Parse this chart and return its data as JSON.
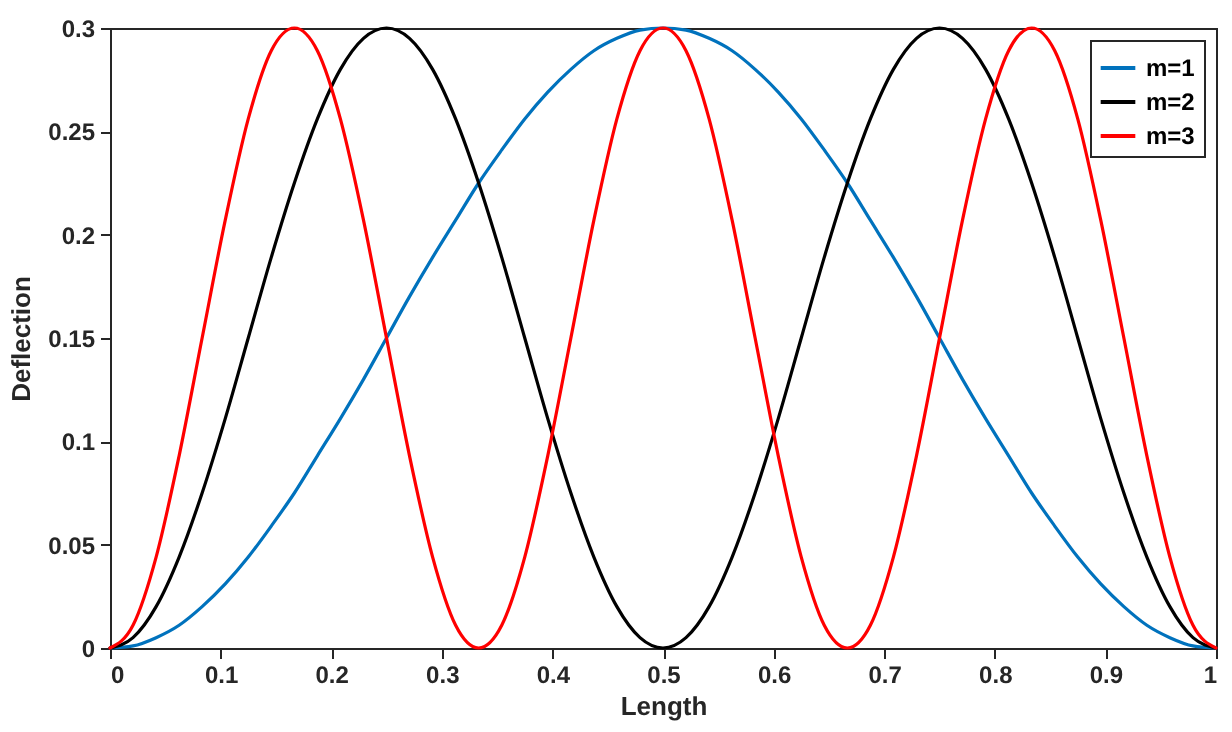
{
  "chart_data": {
    "type": "line",
    "xlabel": "Length",
    "ylabel": "Deflection",
    "x": [
      0,
      0.0208,
      0.0417,
      0.0625,
      0.0833,
      0.1042,
      0.125,
      0.1458,
      0.1667,
      0.1875,
      0.2083,
      0.2292,
      0.25,
      0.2708,
      0.2917,
      0.3125,
      0.3333,
      0.3542,
      0.375,
      0.3958,
      0.4167,
      0.4375,
      0.4583,
      0.4792,
      0.5,
      0.5208,
      0.5417,
      0.5625,
      0.5833,
      0.6042,
      0.625,
      0.6458,
      0.6667,
      0.6875,
      0.7083,
      0.7292,
      0.75,
      0.7708,
      0.7917,
      0.8125,
      0.8333,
      0.8542,
      0.875,
      0.8958,
      0.9167,
      0.9375,
      0.9583,
      0.9792,
      1
    ],
    "series": [
      {
        "name": "m=1",
        "color": "#0072bd",
        "values": [
          0,
          0.001,
          0.005,
          0.011,
          0.02,
          0.031,
          0.044,
          0.059,
          0.075,
          0.093,
          0.111,
          0.13,
          0.15,
          0.17,
          0.189,
          0.207,
          0.225,
          0.241,
          0.256,
          0.269,
          0.28,
          0.289,
          0.295,
          0.299,
          0.3,
          0.299,
          0.295,
          0.289,
          0.28,
          0.269,
          0.256,
          0.241,
          0.225,
          0.207,
          0.189,
          0.17,
          0.15,
          0.13,
          0.111,
          0.093,
          0.075,
          0.059,
          0.044,
          0.031,
          0.02,
          0.011,
          0.005,
          0.001,
          0
        ]
      },
      {
        "name": "m=2",
        "color": "#000000",
        "values": [
          0,
          0.005,
          0.02,
          0.044,
          0.075,
          0.111,
          0.15,
          0.189,
          0.225,
          0.256,
          0.28,
          0.295,
          0.3,
          0.295,
          0.28,
          0.256,
          0.225,
          0.189,
          0.15,
          0.111,
          0.075,
          0.044,
          0.02,
          0.005,
          0,
          0.005,
          0.02,
          0.044,
          0.075,
          0.111,
          0.15,
          0.189,
          0.225,
          0.256,
          0.28,
          0.295,
          0.3,
          0.295,
          0.28,
          0.256,
          0.225,
          0.189,
          0.15,
          0.111,
          0.075,
          0.044,
          0.02,
          0.005,
          0
        ]
      },
      {
        "name": "m=3",
        "color": "#ff0000",
        "values": [
          0,
          0.011,
          0.044,
          0.093,
          0.15,
          0.207,
          0.256,
          0.289,
          0.3,
          0.289,
          0.256,
          0.207,
          0.15,
          0.093,
          0.044,
          0.011,
          0,
          0.011,
          0.044,
          0.093,
          0.15,
          0.207,
          0.256,
          0.289,
          0.3,
          0.289,
          0.256,
          0.207,
          0.15,
          0.093,
          0.044,
          0.011,
          0,
          0.011,
          0.044,
          0.093,
          0.15,
          0.207,
          0.256,
          0.289,
          0.3,
          0.289,
          0.256,
          0.207,
          0.15,
          0.093,
          0.044,
          0.011,
          0
        ]
      }
    ],
    "xlim": [
      0,
      1
    ],
    "xticks": [
      0,
      0.1,
      0.2,
      0.3,
      0.4,
      0.5,
      0.6,
      0.7,
      0.8,
      0.9,
      1
    ],
    "ylim": [
      0,
      0.3
    ],
    "yticks": [
      0,
      0.05,
      0.1,
      0.15,
      0.2,
      0.25,
      0.3
    ],
    "grid": false,
    "legend": "top right",
    "line_style": "solid",
    "marker": "none"
  }
}
